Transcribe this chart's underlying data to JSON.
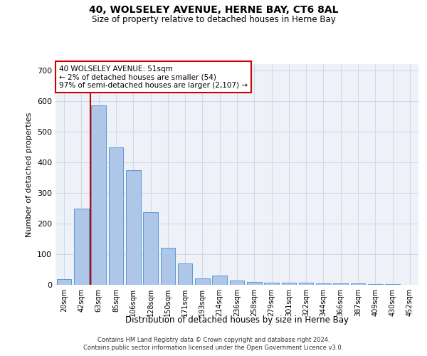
{
  "title": "40, WOLSELEY AVENUE, HERNE BAY, CT6 8AL",
  "subtitle": "Size of property relative to detached houses in Herne Bay",
  "xlabel": "Distribution of detached houses by size in Herne Bay",
  "ylabel": "Number of detached properties",
  "categories": [
    "20sqm",
    "42sqm",
    "63sqm",
    "85sqm",
    "106sqm",
    "128sqm",
    "150sqm",
    "171sqm",
    "193sqm",
    "214sqm",
    "236sqm",
    "258sqm",
    "279sqm",
    "301sqm",
    "322sqm",
    "344sqm",
    "366sqm",
    "387sqm",
    "409sqm",
    "430sqm",
    "452sqm"
  ],
  "values": [
    18,
    248,
    585,
    448,
    375,
    237,
    120,
    70,
    22,
    30,
    13,
    10,
    8,
    8,
    8,
    5,
    5,
    5,
    3,
    2,
    0
  ],
  "bar_color": "#aec6e8",
  "bar_edge_color": "#5b9bd5",
  "grid_color": "#d0d8e8",
  "background_color": "#eef2f8",
  "annotation_text": "40 WOLSELEY AVENUE: 51sqm\n← 2% of detached houses are smaller (54)\n97% of semi-detached houses are larger (2,107) →",
  "annotation_box_color": "#ffffff",
  "annotation_box_edge": "#cc0000",
  "vline_x_index": 1.5,
  "vline_color": "#cc0000",
  "ylim": [
    0,
    720
  ],
  "yticks": [
    0,
    100,
    200,
    300,
    400,
    500,
    600,
    700
  ],
  "footer_line1": "Contains HM Land Registry data © Crown copyright and database right 2024.",
  "footer_line2": "Contains public sector information licensed under the Open Government Licence v3.0."
}
